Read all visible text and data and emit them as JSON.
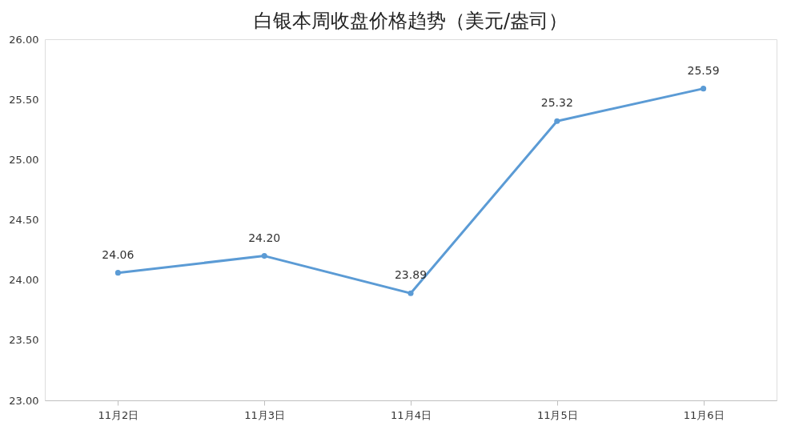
{
  "chart_data": {
    "type": "line",
    "title": "白银本周收盘价格趋势（美元/盎司）",
    "categories": [
      "11月2日",
      "11月3日",
      "11月4日",
      "11月5日",
      "11月6日"
    ],
    "series": [
      {
        "color": "#5b9bd5",
        "values": [
          24.06,
          24.2,
          23.89,
          25.32,
          25.59
        ],
        "value_labels": [
          "24.06",
          "24.20",
          "23.89",
          "25.32",
          "25.59"
        ]
      }
    ],
    "ylim": [
      23,
      26
    ],
    "yticks": [
      {
        "value": 23,
        "label": "23.00"
      },
      {
        "value": 23.5,
        "label": "23.50"
      },
      {
        "value": 24,
        "label": "24.00"
      },
      {
        "value": 24.5,
        "label": "24.50"
      },
      {
        "value": 25,
        "label": "25.00"
      },
      {
        "value": 25.5,
        "label": "25.50"
      },
      {
        "value": 26,
        "label": "26.00"
      }
    ],
    "marker": "circle",
    "line_style": "solid",
    "grid": false
  }
}
